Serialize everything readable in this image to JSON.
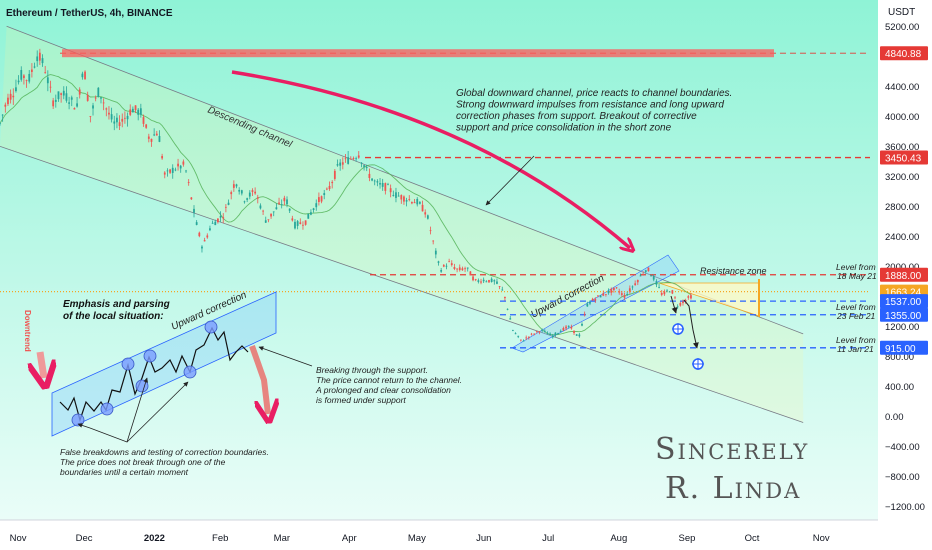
{
  "header": {
    "title": "Ethereum / TetherUS, 4h, BINANCE",
    "currency": "USDT"
  },
  "colors": {
    "bg_top": "#8ff3d6",
    "bg_bottom": "#eafdf8",
    "up": "#26a69a",
    "down": "#ef5350",
    "red_level": "#e53935",
    "blue_level": "#2962ff",
    "orange": "#f5a623",
    "channel_line": "#787b86",
    "ma": "#4caf50",
    "arrow_red": "#e91e63"
  },
  "chart_data": {
    "type": "candlestick",
    "title": "Ethereum / TetherUS, 4h, BINANCE",
    "y_axis": {
      "ticks": [
        5200,
        4800,
        4400,
        4000,
        3600,
        3200,
        2800,
        2400,
        2000,
        1600,
        1200,
        800,
        400,
        0,
        -400,
        -800,
        -1200
      ],
      "tick_labels": [
        "5200.00",
        "4800.00",
        "4400.00",
        "4000.00",
        "3600.00",
        "3200.00",
        "2800.00",
        "2400.00",
        "2000.00",
        "1600.00",
        "1200.00",
        "800.00",
        "400.00",
        "0.00",
        "−400.00",
        "−800.00",
        "−1200.00"
      ],
      "range": [
        -1380,
        5550
      ]
    },
    "x_axis": {
      "labels": [
        "Nov",
        "Dec",
        "2022",
        "Feb",
        "Mar",
        "Apr",
        "May",
        "Jun",
        "Jul",
        "Aug",
        "Sep",
        "Oct",
        "Nov"
      ],
      "range": [
        "2021-10-24",
        "2022-11-27"
      ]
    },
    "series_points": [
      [
        "2021-10-24",
        3900
      ],
      [
        "2021-10-27",
        4200
      ],
      [
        "2021-10-30",
        4320
      ],
      [
        "2021-11-03",
        4560
      ],
      [
        "2021-11-06",
        4480
      ],
      [
        "2021-11-10",
        4820
      ],
      [
        "2021-11-13",
        4690
      ],
      [
        "2021-11-17",
        4200
      ],
      [
        "2021-11-21",
        4300
      ],
      [
        "2021-11-24",
        4250
      ],
      [
        "2021-11-28",
        4120
      ],
      [
        "2021-12-01",
        4700
      ],
      [
        "2021-12-04",
        4000
      ],
      [
        "2021-12-08",
        4350
      ],
      [
        "2021-12-12",
        4050
      ],
      [
        "2021-12-15",
        3900
      ],
      [
        "2021-12-19",
        3950
      ],
      [
        "2021-12-23",
        4100
      ],
      [
        "2021-12-27",
        4050
      ],
      [
        "2021-12-31",
        3700
      ],
      [
        "2022-01-04",
        3800
      ],
      [
        "2022-01-07",
        3200
      ],
      [
        "2022-01-11",
        3300
      ],
      [
        "2022-01-16",
        3350
      ],
      [
        "2022-01-21",
        2600
      ],
      [
        "2022-01-24",
        2250
      ],
      [
        "2022-01-28",
        2550
      ],
      [
        "2022-02-03",
        2700
      ],
      [
        "2022-02-08",
        3150
      ],
      [
        "2022-02-12",
        2900
      ],
      [
        "2022-02-17",
        3000
      ],
      [
        "2022-02-22",
        2600
      ],
      [
        "2022-02-26",
        2750
      ],
      [
        "2022-03-03",
        2900
      ],
      [
        "2022-03-07",
        2550
      ],
      [
        "2022-03-12",
        2600
      ],
      [
        "2022-03-17",
        2850
      ],
      [
        "2022-03-22",
        3000
      ],
      [
        "2022-03-27",
        3350
      ],
      [
        "2022-04-02",
        3450
      ],
      [
        "2022-04-05",
        3500
      ],
      [
        "2022-04-09",
        3250
      ],
      [
        "2022-04-13",
        3100
      ],
      [
        "2022-04-18",
        3050
      ],
      [
        "2022-04-22",
        2950
      ],
      [
        "2022-04-27",
        2900
      ],
      [
        "2022-05-02",
        2850
      ],
      [
        "2022-05-06",
        2700
      ],
      [
        "2022-05-09",
        2300
      ],
      [
        "2022-05-12",
        1950
      ],
      [
        "2022-05-16",
        2050
      ],
      [
        "2022-05-20",
        1950
      ],
      [
        "2022-05-24",
        1980
      ],
      [
        "2022-05-28",
        1800
      ],
      [
        "2022-06-01",
        1820
      ],
      [
        "2022-06-06",
        1800
      ],
      [
        "2022-06-10",
        1650
      ],
      [
        "2022-06-14",
        1150
      ],
      [
        "2022-06-18",
        1000
      ],
      [
        "2022-06-22",
        1080
      ],
      [
        "2022-06-27",
        1150
      ],
      [
        "2022-07-02",
        1070
      ],
      [
        "2022-07-06",
        1150
      ],
      [
        "2022-07-10",
        1200
      ],
      [
        "2022-07-14",
        1050
      ],
      [
        "2022-07-18",
        1500
      ],
      [
        "2022-07-22",
        1580
      ],
      [
        "2022-07-27",
        1650
      ],
      [
        "2022-07-31",
        1700
      ],
      [
        "2022-08-04",
        1600
      ],
      [
        "2022-08-08",
        1750
      ],
      [
        "2022-08-12",
        1900
      ],
      [
        "2022-08-14",
        1980
      ],
      [
        "2022-08-17",
        1850
      ],
      [
        "2022-08-21",
        1620
      ],
      [
        "2022-08-25",
        1700
      ],
      [
        "2022-08-28",
        1480
      ],
      [
        "2022-09-01",
        1560
      ],
      [
        "2022-09-03",
        1600
      ]
    ],
    "levels": [
      {
        "price": 4840.88,
        "label": "4840.88",
        "color": "#e53935",
        "style": "dashed"
      },
      {
        "price": 3450.43,
        "label": "3450.43",
        "color": "#e53935",
        "style": "dashed"
      },
      {
        "price": 1888.0,
        "label": "1888.00",
        "color": "#e53935",
        "style": "dashed",
        "note_line1": "Level from",
        "note_line2": "18 May 21"
      },
      {
        "price": 1663.24,
        "label": "1663.24",
        "color": "#f5a623",
        "style": "dotted"
      },
      {
        "price": 1537.0,
        "label": "1537.00",
        "color": "#2962ff",
        "style": "dashed"
      },
      {
        "price": 1355.0,
        "label": "1355.00",
        "color": "#2962ff",
        "style": "dashed",
        "note_line1": "Level from",
        "note_line2": "23 Feb 21"
      },
      {
        "price": 915.0,
        "label": "915.00",
        "color": "#2962ff",
        "style": "dashed",
        "note_line1": "Level from",
        "note_line2": "11 Jan 21"
      }
    ],
    "annotations": {
      "descending_channel": "Descending channel",
      "upward_correction": "Upward correction",
      "resistance_zone": "Resistance zone",
      "global_note": [
        "Global downward channel, price reacts to channel boundaries.",
        "Strong downward impulses from resistance and long upward",
        "correction phases from support. Breakout of corrective",
        "support and price consolidation in the short zone"
      ]
    }
  },
  "inset": {
    "heading_line1": "Emphasis and parsing",
    "heading_line2": "of the local situation:",
    "downtrend": "Downtrend",
    "upward_correction": "Upward correction",
    "false_breakdowns": [
      "False breakdowns and testing of correction boundaries.",
      "The price does not break through one of the",
      "boundaries until a certain moment"
    ],
    "breaking": [
      "Breaking through the support.",
      "The price cannot return to the channel.",
      "A prolonged and clear consolidation",
      "is formed under support"
    ]
  },
  "signature": {
    "line1": "Sincerely",
    "line2": "R. Linda"
  }
}
